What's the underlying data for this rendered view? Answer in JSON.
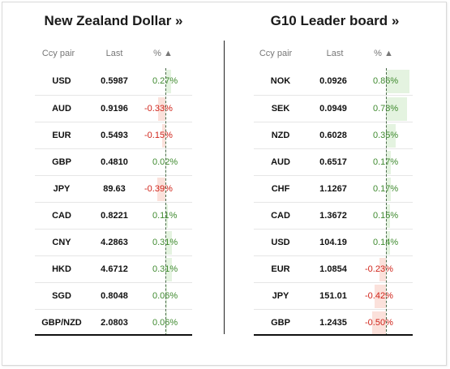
{
  "left": {
    "title": "New Zealand Dollar »",
    "headers": {
      "pair": "Ccy pair",
      "last": "Last",
      "pct": "% ▲"
    },
    "rows": [
      {
        "pair": "USD",
        "last": "0.5987",
        "pct": "0.27%",
        "value": 0.27
      },
      {
        "pair": "AUD",
        "last": "0.9196",
        "pct": "-0.33%",
        "value": -0.33
      },
      {
        "pair": "EUR",
        "last": "0.5493",
        "pct": "-0.15%",
        "value": -0.15
      },
      {
        "pair": "GBP",
        "last": "0.4810",
        "pct": "0.02%",
        "value": 0.02
      },
      {
        "pair": "JPY",
        "last": "89.63",
        "pct": "-0.39%",
        "value": -0.39
      },
      {
        "pair": "CAD",
        "last": "0.8221",
        "pct": "0.11%",
        "value": 0.11
      },
      {
        "pair": "CNY",
        "last": "4.2863",
        "pct": "0.31%",
        "value": 0.31
      },
      {
        "pair": "HKD",
        "last": "4.6712",
        "pct": "0.31%",
        "value": 0.31
      },
      {
        "pair": "SGD",
        "last": "0.8048",
        "pct": "0.06%",
        "value": 0.06
      },
      {
        "pair": "GBP/NZD",
        "last": "2.0803",
        "pct": "0.06%",
        "value": 0.06
      }
    ]
  },
  "right": {
    "title": "G10 Leader board »",
    "headers": {
      "pair": "Ccy pair",
      "last": "Last",
      "pct": "% ▲"
    },
    "rows": [
      {
        "pair": "NOK",
        "last": "0.0926",
        "pct": "0.86%",
        "value": 0.86
      },
      {
        "pair": "SEK",
        "last": "0.0949",
        "pct": "0.78%",
        "value": 0.78
      },
      {
        "pair": "NZD",
        "last": "0.6028",
        "pct": "0.35%",
        "value": 0.35
      },
      {
        "pair": "AUD",
        "last": "0.6517",
        "pct": "0.17%",
        "value": 0.17
      },
      {
        "pair": "CHF",
        "last": "1.1267",
        "pct": "0.17%",
        "value": 0.17
      },
      {
        "pair": "CAD",
        "last": "1.3672",
        "pct": "0.15%",
        "value": 0.15
      },
      {
        "pair": "USD",
        "last": "104.19",
        "pct": "0.14%",
        "value": 0.14
      },
      {
        "pair": "EUR",
        "last": "1.0854",
        "pct": "-0.23%",
        "value": -0.23
      },
      {
        "pair": "JPY",
        "last": "151.01",
        "pct": "-0.42%",
        "value": -0.42
      },
      {
        "pair": "GBP",
        "last": "1.2435",
        "pct": "-0.50%",
        "value": -0.5
      }
    ]
  },
  "colors": {
    "positive_bar": "#e4f3e0",
    "negative_bar": "#fbe1db",
    "positive_text": "#3f8a2f",
    "negative_text": "#d0241a"
  }
}
